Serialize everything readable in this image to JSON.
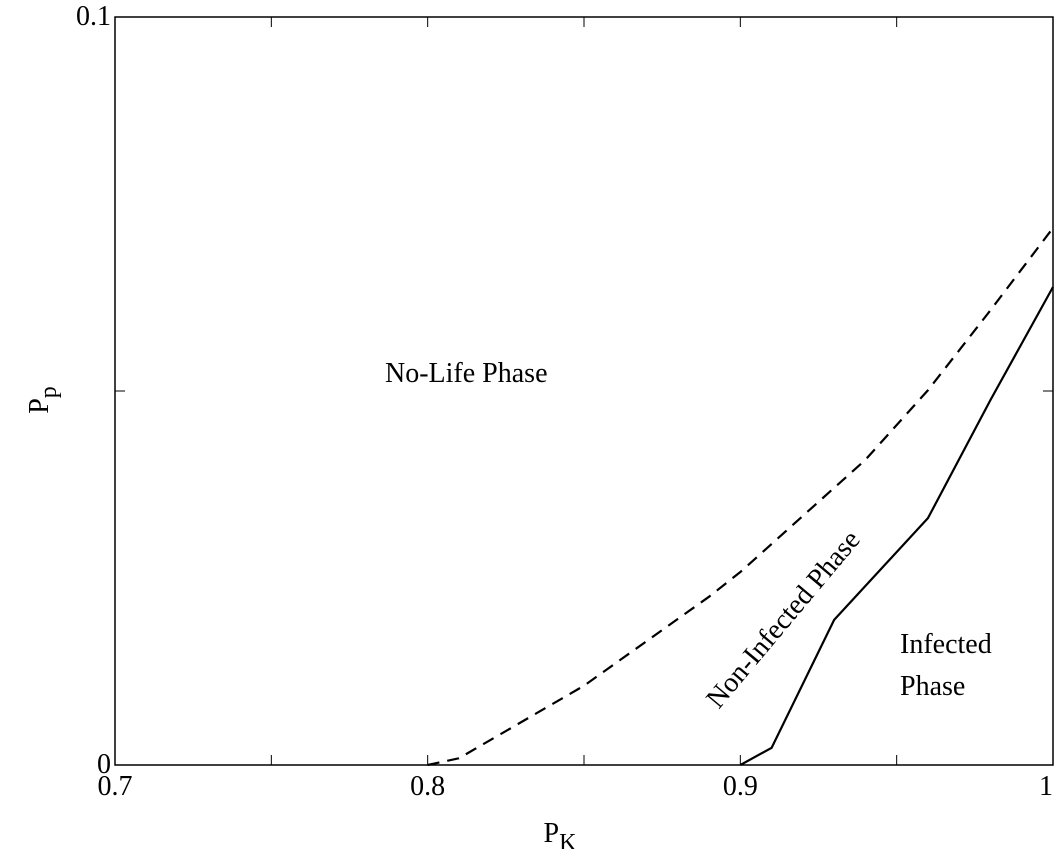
{
  "chart_data": {
    "type": "line",
    "xlabel": {
      "main": "P",
      "sub": "K"
    },
    "ylabel": {
      "main": "P",
      "sub": "p"
    },
    "xlim": [
      0.7,
      1
    ],
    "xticks": [
      0.7,
      0.8,
      0.9,
      1
    ],
    "xminor_ticks": [
      0.75,
      0.85,
      0.95
    ],
    "ylim": [
      0,
      0.1
    ],
    "yticks": [
      0,
      0.1
    ],
    "yminor_ticks": [
      0.05
    ],
    "series": [
      {
        "color": "#000000",
        "dash": true,
        "x": [
          0.8,
          0.81,
          0.85,
          0.89,
          0.9,
          0.94,
          0.96,
          0.98,
          1.0
        ],
        "values": [
          0,
          0.0009,
          0.0106,
          0.0225,
          0.0258,
          0.0408,
          0.0501,
          0.0608,
          0.0718
        ]
      },
      {
        "color": "#000000",
        "dash": false,
        "x": [
          0.9,
          0.91,
          0.93,
          0.96,
          0.98,
          1.0
        ],
        "values": [
          0,
          0.0023,
          0.0194,
          0.033,
          0.0488,
          0.0639
        ]
      }
    ],
    "annotations": [
      "No-Life Phase",
      "Non-Infected Phase",
      "Infected",
      "Phase"
    ]
  }
}
